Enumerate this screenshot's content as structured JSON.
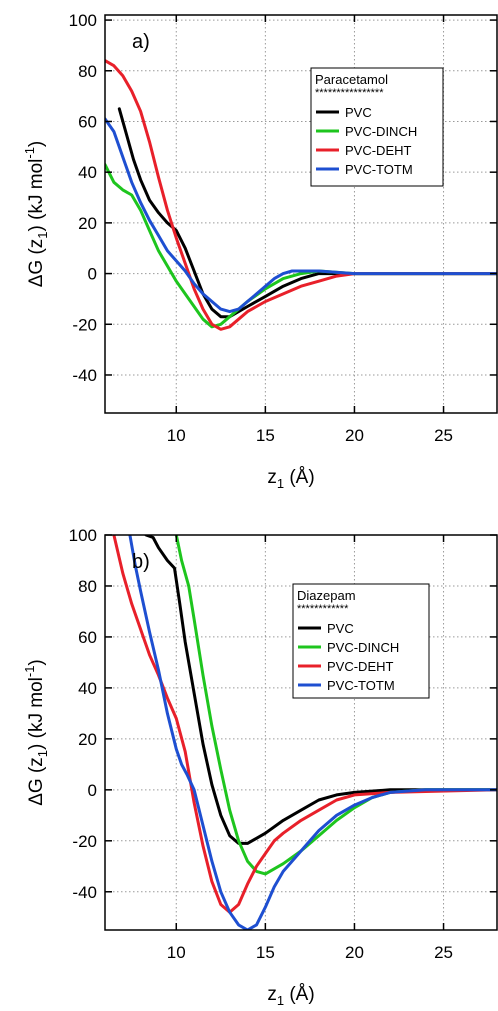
{
  "chart_data": [
    {
      "type": "line",
      "panel_label": "a)",
      "xlabel_main": "z",
      "xlabel_sub": "1",
      "xlabel_unit": " (Å)",
      "ylabel_parts": [
        "ΔG (z",
        "1",
        ") (kJ mol",
        "-1",
        ")"
      ],
      "xlim": [
        6,
        28
      ],
      "ylim": [
        -55,
        102
      ],
      "xticks": [
        10,
        15,
        20,
        25
      ],
      "yticks": [
        100,
        80,
        60,
        40,
        20,
        0,
        -20,
        -40
      ],
      "grid": true,
      "legend_position": "top-right",
      "legend_title": "Paracetamol",
      "legend_stars": "****************",
      "series": [
        {
          "name": "PVC",
          "color": "#000000",
          "x": [
            6.8,
            7.2,
            7.6,
            8.0,
            8.5,
            9.0,
            9.5,
            10.0,
            10.5,
            11.0,
            11.5,
            12.0,
            12.5,
            13.0,
            13.5,
            14.0,
            15.0,
            16.0,
            17.0,
            18.0,
            20.0,
            22.0,
            25.0,
            28.0
          ],
          "y": [
            65,
            55,
            45,
            37,
            29,
            24,
            20,
            17,
            10,
            1,
            -8,
            -14,
            -17,
            -17,
            -15,
            -13,
            -9,
            -5,
            -2,
            0,
            0,
            0,
            0,
            0
          ]
        },
        {
          "name": "PVC-DINCH",
          "color": "#1ec51e",
          "x": [
            6.0,
            6.5,
            7.0,
            7.5,
            8.0,
            8.5,
            9.0,
            9.5,
            10.0,
            10.5,
            11.0,
            11.5,
            12.0,
            12.5,
            13.0,
            13.5,
            14.0,
            15.0,
            16.0,
            17.0,
            18.0,
            20.0,
            22.0,
            25.0,
            28.0
          ],
          "y": [
            43,
            36,
            33,
            31,
            25,
            17,
            9,
            3,
            -3,
            -8,
            -13,
            -18,
            -21,
            -20,
            -17,
            -14,
            -11,
            -6,
            -2,
            0,
            1,
            0,
            0,
            0,
            0
          ]
        },
        {
          "name": "PVC-DEHT",
          "color": "#e8202a",
          "x": [
            6.0,
            6.5,
            7.0,
            7.5,
            8.0,
            8.5,
            9.0,
            9.5,
            10.0,
            10.5,
            11.0,
            11.5,
            12.0,
            12.5,
            13.0,
            13.5,
            14.0,
            14.5,
            15.0,
            16.0,
            17.0,
            18.0,
            19.0,
            20.0,
            22.0,
            25.0,
            28.0
          ],
          "y": [
            84,
            82,
            78,
            72,
            64,
            52,
            38,
            25,
            14,
            4,
            -6,
            -14,
            -20,
            -22,
            -21,
            -18,
            -15,
            -13,
            -11,
            -8,
            -5,
            -3,
            -1,
            0,
            0,
            0,
            0
          ]
        },
        {
          "name": "PVC-TOTM",
          "color": "#1e4fd1",
          "x": [
            6.0,
            6.5,
            7.0,
            7.5,
            8.0,
            8.5,
            9.0,
            9.5,
            10.0,
            10.5,
            11.0,
            11.5,
            12.0,
            12.5,
            13.0,
            13.5,
            14.0,
            14.5,
            15.0,
            15.5,
            16.0,
            16.5,
            17.0,
            18.0,
            20.0,
            22.0,
            25.0,
            28.0
          ],
          "y": [
            61,
            56,
            46,
            36,
            28,
            21,
            15,
            9,
            5,
            1,
            -4,
            -8,
            -11,
            -14,
            -15,
            -14,
            -11,
            -8,
            -5,
            -2,
            0,
            1,
            1,
            1,
            0,
            0,
            0,
            0
          ]
        }
      ]
    },
    {
      "type": "line",
      "panel_label": "b)",
      "xlabel_main": "z",
      "xlabel_sub": "1",
      "xlabel_unit": " (Å)",
      "ylabel_parts": [
        "ΔG (z",
        "1",
        ") (kJ mol",
        "-1",
        ")"
      ],
      "xlim": [
        6,
        28
      ],
      "ylim": [
        -55,
        100
      ],
      "xticks": [
        10,
        15,
        20,
        25
      ],
      "yticks": [
        100,
        80,
        60,
        40,
        20,
        0,
        -20,
        -40
      ],
      "grid": true,
      "legend_position": "top-right",
      "legend_title": "Diazepam",
      "legend_stars": "************",
      "series": [
        {
          "name": "PVC",
          "color": "#000000",
          "x": [
            8.3,
            8.7,
            9.0,
            9.5,
            9.9,
            10.2,
            10.5,
            11.0,
            11.5,
            12.0,
            12.5,
            13.0,
            13.5,
            14.0,
            14.5,
            15.0,
            16.0,
            17.0,
            18.0,
            19.0,
            20.0,
            22.0,
            25.0,
            28.0
          ],
          "y": [
            100,
            99,
            95,
            90,
            87,
            73,
            58,
            38,
            18,
            2,
            -10,
            -18,
            -21,
            -21,
            -19,
            -17,
            -12,
            -8,
            -4,
            -2,
            -1,
            0,
            0,
            0
          ]
        },
        {
          "name": "PVC-DINCH",
          "color": "#1ec51e",
          "x": [
            10.0,
            10.3,
            10.7,
            11.0,
            11.5,
            12.0,
            12.5,
            13.0,
            13.5,
            14.0,
            14.5,
            15.0,
            15.5,
            16.0,
            17.0,
            18.0,
            19.0,
            20.0,
            21.0,
            22.0,
            24.0,
            28.0
          ],
          "y": [
            100,
            90,
            80,
            67,
            45,
            25,
            8,
            -8,
            -20,
            -28,
            -32,
            -33,
            -31,
            -29,
            -24,
            -18,
            -12,
            -7,
            -3,
            -1,
            0,
            0
          ]
        },
        {
          "name": "PVC-DEHT",
          "color": "#e8202a",
          "x": [
            6.5,
            7.0,
            7.5,
            8.0,
            8.5,
            9.0,
            9.5,
            10.0,
            10.5,
            11.0,
            11.5,
            12.0,
            12.5,
            13.0,
            13.5,
            14.0,
            14.5,
            15.0,
            15.5,
            16.0,
            17.0,
            18.0,
            19.0,
            20.0,
            22.0,
            28.0
          ],
          "y": [
            100,
            85,
            73,
            63,
            53,
            45,
            36,
            28,
            15,
            -5,
            -22,
            -36,
            -45,
            -48,
            -45,
            -37,
            -30,
            -25,
            -20,
            -17,
            -12,
            -8,
            -4,
            -2,
            -1,
            0
          ]
        },
        {
          "name": "PVC-TOTM",
          "color": "#1e4fd1",
          "x": [
            7.4,
            7.7,
            8.0,
            8.5,
            9.0,
            9.5,
            10.0,
            10.3,
            10.6,
            11.0,
            11.5,
            12.0,
            12.5,
            13.0,
            13.5,
            14.0,
            14.5,
            15.0,
            15.5,
            16.0,
            17.0,
            18.0,
            19.0,
            20.0,
            21.0,
            22.0,
            24.0,
            28.0
          ],
          "y": [
            100,
            88,
            78,
            62,
            47,
            30,
            16,
            10,
            6,
            0,
            -14,
            -28,
            -40,
            -48,
            -53,
            -55,
            -53,
            -46,
            -38,
            -32,
            -24,
            -16,
            -10,
            -6,
            -3,
            -1,
            0,
            0
          ]
        }
      ]
    }
  ]
}
